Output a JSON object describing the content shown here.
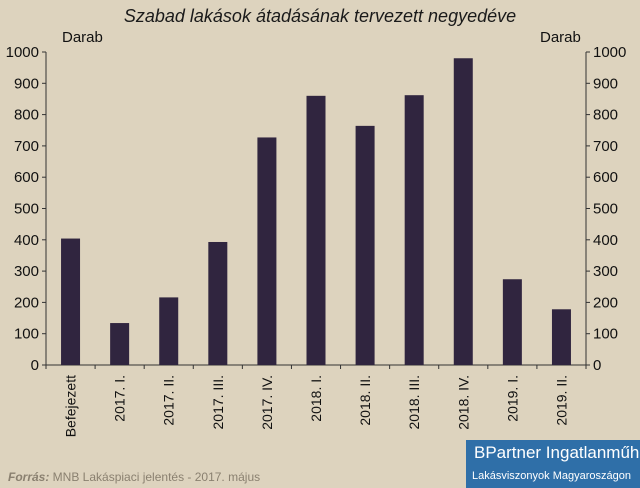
{
  "chart_data": {
    "type": "bar",
    "title": "Szabad lakások átadásának tervezett negyedéve",
    "ylabel_left": "Darab",
    "ylabel_right": "Darab",
    "categories": [
      "Befejezett",
      "2017. I.",
      "2017. II.",
      "2017. III.",
      "2017. IV.",
      "2018. I.",
      "2018. II.",
      "2018. III.",
      "2018. IV.",
      "2019. I.",
      "2019. II."
    ],
    "values": [
      404,
      134,
      216,
      393,
      727,
      860,
      764,
      862,
      980,
      274,
      178
    ],
    "ylim": [
      0,
      1000
    ],
    "yticks": [
      0,
      100,
      200,
      300,
      400,
      500,
      600,
      700,
      800,
      900,
      1000
    ],
    "bar_color": "#30253f",
    "grid": false
  },
  "footer": {
    "source_label": "Forrás:",
    "source_text": " MNB Lakáspiaci jelentés - 2017. május",
    "brand_line1": "BPartner Ingatlanműhely",
    "brand_line2": "Lakásviszonyok Magyaroszágon",
    "brand_color": "#2f6fa8"
  }
}
